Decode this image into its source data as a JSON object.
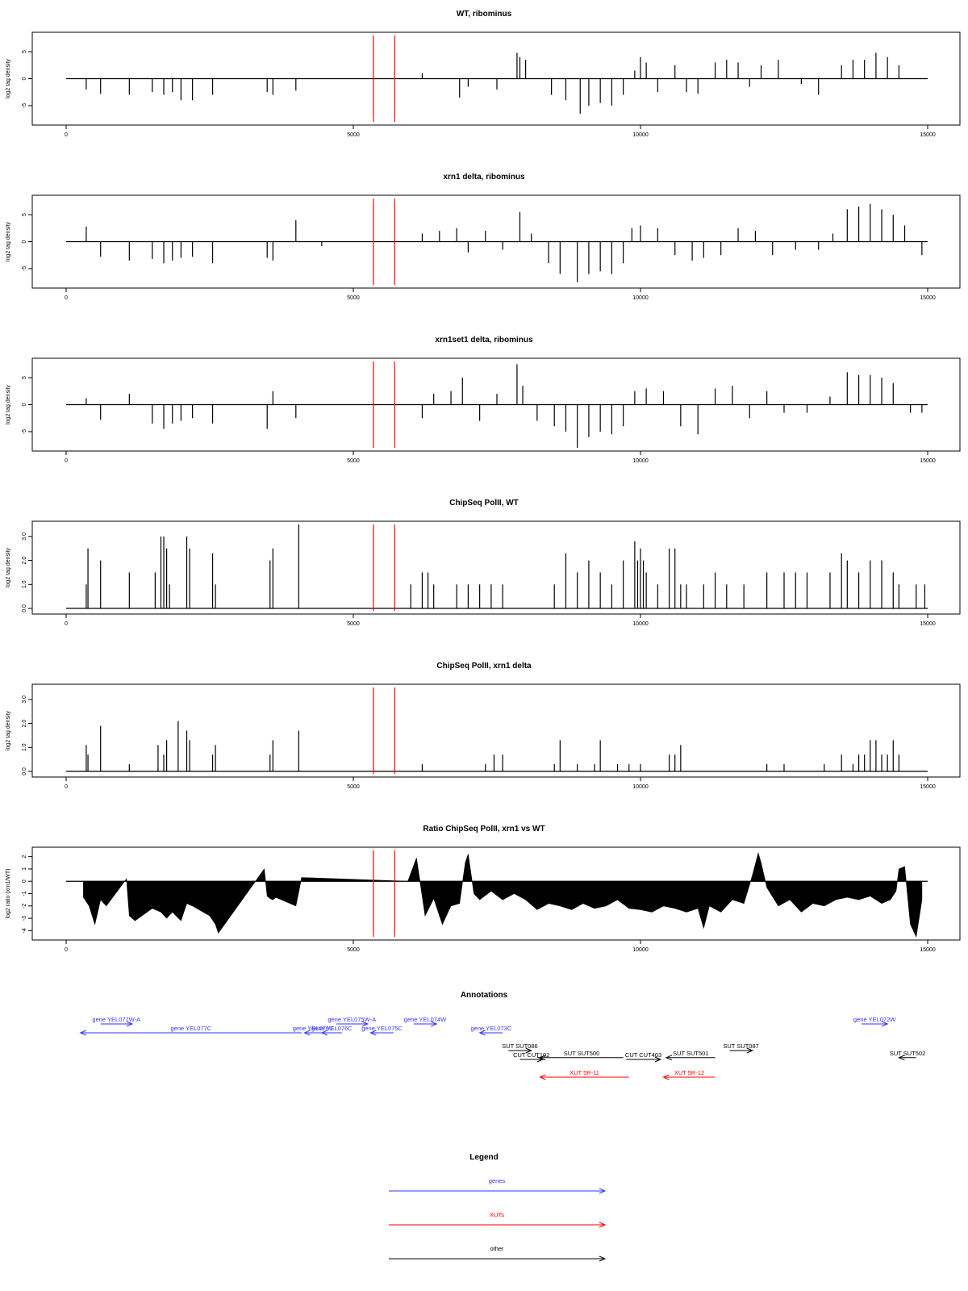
{
  "colors": {
    "genes": "#3333ff",
    "xuts": "#ff0000",
    "other": "#000000",
    "marker": "#ff0000"
  },
  "chart_data": [
    {
      "type": "bar",
      "title": "WT, ribominus",
      "ylabel": "log2 tag density",
      "xlim": [
        0,
        15000
      ],
      "ylim": [
        -8,
        8
      ],
      "xticks": [
        0,
        5000,
        10000,
        15000
      ],
      "xtick_labels": [
        "0",
        "5000",
        "10000",
        "15000"
      ],
      "yticks": [
        -5,
        0,
        5
      ],
      "ytick_labels": [
        "-5",
        "0",
        "5"
      ],
      "markers": [
        5350,
        5720
      ],
      "x": [
        350,
        600,
        1100,
        1500,
        1700,
        1850,
        2000,
        2200,
        2550,
        3500,
        3600,
        4000,
        6200,
        6850,
        7000,
        7500,
        7850,
        7900,
        8000,
        8450,
        8700,
        8950,
        9100,
        9300,
        9500,
        9700,
        9900,
        10000,
        10100,
        10300,
        10600,
        10800,
        11000,
        11300,
        11500,
        11700,
        11900,
        12100,
        12400,
        12800,
        13100,
        13500,
        13700,
        13900,
        14100,
        14300,
        14500
      ],
      "values": [
        -2,
        -2.8,
        -3,
        -2.5,
        -3,
        -2.5,
        -4,
        -4,
        -3,
        -2.5,
        -3,
        -2.2,
        1,
        -3.5,
        -1.5,
        -2,
        4.8,
        4,
        3.5,
        -3,
        -4,
        -6.5,
        -5,
        -4.5,
        -5,
        -3,
        1.5,
        4,
        3,
        -2.5,
        2.5,
        -2.5,
        -2.8,
        3,
        3.5,
        3,
        -1.5,
        2.5,
        3.5,
        -1,
        -3,
        2.5,
        3.5,
        3.5,
        4.8,
        4,
        2.5
      ]
    },
    {
      "type": "bar",
      "title": "xrn1 delta, ribominus",
      "ylabel": "log2 tag density",
      "xlim": [
        0,
        15000
      ],
      "ylim": [
        -8,
        8
      ],
      "xticks": [
        0,
        5000,
        10000,
        15000
      ],
      "xtick_labels": [
        "0",
        "5000",
        "10000",
        "15000"
      ],
      "yticks": [
        -5,
        0,
        5
      ],
      "ytick_labels": [
        "-5",
        "0",
        "5"
      ],
      "markers": [
        5350,
        5720
      ],
      "x": [
        350,
        600,
        1100,
        1500,
        1700,
        1850,
        2000,
        2200,
        2550,
        3500,
        3600,
        4000,
        4450,
        6200,
        6500,
        6800,
        7000,
        7300,
        7600,
        7900,
        8100,
        8400,
        8600,
        8900,
        9100,
        9300,
        9500,
        9700,
        9850,
        10000,
        10300,
        10600,
        10900,
        11100,
        11400,
        11700,
        12000,
        12300,
        12700,
        13100,
        13350,
        13600,
        13800,
        14000,
        14200,
        14400,
        14600,
        14900
      ],
      "values": [
        2.8,
        -2.8,
        -3.5,
        -3.2,
        -4,
        -3.5,
        -3,
        -2.8,
        -4,
        -3,
        -3.5,
        4,
        -0.8,
        1.5,
        2,
        2.5,
        -2,
        2,
        -1.5,
        5.5,
        1.5,
        -4,
        -6,
        -7.5,
        -6,
        -5.5,
        -6,
        -4,
        2.5,
        3,
        2.5,
        -2.5,
        -3.5,
        -3,
        -2.5,
        2.5,
        2,
        -2.5,
        -1.5,
        -1.5,
        1.5,
        6,
        6.5,
        7,
        6,
        5,
        3,
        -2.5
      ]
    },
    {
      "type": "bar",
      "title": "xrn1set1 delta, ribominus",
      "ylabel": "log2 tag density",
      "xlim": [
        0,
        15000
      ],
      "ylim": [
        -8,
        8
      ],
      "xticks": [
        0,
        5000,
        10000,
        15000
      ],
      "xtick_labels": [
        "0",
        "5000",
        "10000",
        "15000"
      ],
      "yticks": [
        -5,
        0,
        5
      ],
      "ytick_labels": [
        "-5",
        "0",
        "5"
      ],
      "markers": [
        5350,
        5720
      ],
      "x": [
        350,
        600,
        1100,
        1500,
        1700,
        1850,
        2000,
        2200,
        2550,
        3500,
        3600,
        4000,
        6200,
        6400,
        6700,
        6900,
        7200,
        7500,
        7850,
        7950,
        8200,
        8500,
        8700,
        8900,
        9100,
        9300,
        9500,
        9700,
        9900,
        10100,
        10400,
        10700,
        11000,
        11300,
        11600,
        11900,
        12200,
        12500,
        12900,
        13300,
        13600,
        13800,
        14000,
        14200,
        14400,
        14700,
        14900
      ],
      "values": [
        1.2,
        -2.8,
        2,
        -3.5,
        -4.5,
        -3.5,
        -3,
        -2.5,
        -3.5,
        -4.5,
        2.5,
        -2.5,
        -2.5,
        2,
        2.5,
        5,
        -3,
        2,
        7.5,
        3.5,
        -3,
        -4,
        -5,
        -8,
        -6,
        -5,
        -5.5,
        -4,
        2.5,
        3,
        2.5,
        -4,
        -5.5,
        3,
        3.5,
        -2.5,
        2.5,
        -1.5,
        -1.5,
        1.5,
        6,
        5.5,
        5.5,
        5,
        4,
        -1.5,
        -1.5
      ]
    },
    {
      "type": "bar",
      "title": "ChipSeq PolII, WT",
      "ylabel": "log2 tag density",
      "xlim": [
        0,
        15000
      ],
      "ylim": [
        -0.1,
        3.5
      ],
      "xticks": [
        0,
        5000,
        10000,
        15000
      ],
      "xtick_labels": [
        "0",
        "5000",
        "10000",
        "15000"
      ],
      "yticks": [
        0,
        1,
        2,
        3
      ],
      "ytick_labels": [
        "0.0",
        "1.0",
        "2.0",
        "3.0"
      ],
      "markers": [
        5350,
        5720
      ],
      "x": [
        350,
        380,
        600,
        1100,
        1550,
        1650,
        1700,
        1750,
        1800,
        2100,
        2150,
        2550,
        2600,
        3550,
        3600,
        4050,
        6000,
        6200,
        6300,
        6400,
        6800,
        7000,
        7200,
        7400,
        7600,
        8500,
        8700,
        8900,
        9100,
        9300,
        9500,
        9700,
        9900,
        9950,
        10000,
        10050,
        10100,
        10300,
        10500,
        10600,
        10700,
        10800,
        11100,
        11300,
        11500,
        11800,
        12200,
        12500,
        12700,
        12900,
        13300,
        13500,
        13600,
        13800,
        14000,
        14200,
        14400,
        14500,
        14800,
        14950
      ],
      "values": [
        1,
        2.5,
        2,
        1.5,
        1.5,
        3,
        3,
        2.5,
        1,
        3,
        2.5,
        2.3,
        1,
        2,
        2.5,
        3.5,
        1,
        1.5,
        1.5,
        1,
        1,
        1,
        1,
        1,
        1,
        1,
        2.3,
        1.5,
        2,
        1.5,
        1,
        2,
        2.8,
        2,
        2.5,
        2,
        1.5,
        1,
        2.5,
        2.5,
        1,
        1,
        1,
        1.5,
        1,
        1,
        1.5,
        1.5,
        1.5,
        1.5,
        1.5,
        2.3,
        2,
        1.5,
        2,
        2,
        1.5,
        1,
        1,
        1
      ]
    },
    {
      "type": "bar",
      "title": "ChipSeq PolII, xrn1 delta",
      "ylabel": "log2 tag density",
      "xlim": [
        0,
        15000
      ],
      "ylim": [
        -0.1,
        3.5
      ],
      "xticks": [
        0,
        5000,
        10000,
        15000
      ],
      "xtick_labels": [
        "0",
        "5000",
        "10000",
        "15000"
      ],
      "yticks": [
        0,
        1,
        2,
        3
      ],
      "ytick_labels": [
        "0.0",
        "1.0",
        "2.0",
        "3.0"
      ],
      "markers": [
        5350,
        5720
      ],
      "x": [
        350,
        380,
        600,
        1100,
        1600,
        1700,
        1750,
        1950,
        2100,
        2150,
        2550,
        2600,
        3550,
        3600,
        4050,
        6200,
        7300,
        7450,
        7600,
        8500,
        8600,
        8900,
        9200,
        9300,
        9600,
        9800,
        10000,
        10500,
        10600,
        10700,
        12200,
        12500,
        13200,
        13500,
        13700,
        13800,
        13900,
        14000,
        14100,
        14200,
        14300,
        14400,
        14500
      ],
      "values": [
        1.1,
        0.7,
        1.9,
        0.3,
        1.1,
        0.7,
        1.3,
        2.1,
        1.7,
        1.3,
        0.7,
        1.1,
        0.7,
        1.3,
        1.7,
        0.3,
        0.3,
        0.7,
        0.7,
        0.3,
        1.3,
        0.3,
        0.3,
        1.3,
        0.3,
        0.3,
        0.3,
        0.7,
        0.7,
        1.1,
        0.3,
        0.3,
        0.3,
        0.7,
        0.3,
        0.7,
        0.7,
        1.3,
        1.3,
        0.7,
        0.7,
        1.3,
        0.7
      ]
    },
    {
      "type": "area",
      "title": "Ratio ChipSeq PolII, xrn1 vs WT",
      "ylabel": "log2 ratio (xrn1/WT)",
      "xlim": [
        0,
        15000
      ],
      "ylim": [
        -4.5,
        2.5
      ],
      "xticks": [
        0,
        5000,
        10000,
        15000
      ],
      "xtick_labels": [
        "0",
        "5000",
        "10000",
        "15000"
      ],
      "yticks": [
        -4,
        -3,
        -2,
        -1,
        0,
        1,
        2
      ],
      "ytick_labels": [
        "-4",
        "-3",
        "-2",
        "-1",
        "0",
        "1",
        "2"
      ],
      "markers": [
        5350,
        5720
      ],
      "x": [
        300,
        400,
        500,
        600,
        700,
        1050,
        1100,
        1200,
        1500,
        1650,
        1750,
        1850,
        2000,
        2100,
        2200,
        2500,
        2600,
        2650,
        3450,
        3500,
        3550,
        3600,
        3650,
        4000,
        4100,
        5950,
        6100,
        6250,
        6400,
        6550,
        6700,
        6850,
        6950,
        7000,
        7100,
        7200,
        7400,
        7600,
        7800,
        8000,
        8200,
        8400,
        8600,
        8800,
        9000,
        9200,
        9400,
        9600,
        9800,
        10000,
        10200,
        10400,
        10600,
        10800,
        11000,
        11100,
        11200,
        11400,
        11600,
        11800,
        11950,
        12050,
        12100,
        12200,
        12400,
        12600,
        12800,
        13000,
        13200,
        13400,
        13600,
        13800,
        14000,
        14200,
        14350,
        14450,
        14500,
        14600,
        14700,
        14800,
        14900
      ],
      "values": [
        -1.3,
        -2,
        -3.5,
        -1.5,
        -2,
        0.2,
        -2.8,
        -3.2,
        -2.2,
        -2.5,
        -3,
        -2.5,
        -3.2,
        -1.8,
        -2,
        -2.8,
        -3.5,
        -4.2,
        1,
        -1.2,
        -1.4,
        -1.5,
        -1.3,
        -2,
        0.3,
        0,
        1.9,
        -2.8,
        -1.4,
        -3.5,
        -2,
        -1.8,
        1.5,
        2.2,
        -1,
        -1.5,
        -0.8,
        -1.5,
        -1,
        -1.5,
        -2.3,
        -1.8,
        -2,
        -2.3,
        -1.8,
        -2.2,
        -2,
        -1.5,
        -2.2,
        -2.3,
        -2.5,
        -2,
        -2.2,
        -2.5,
        -2.2,
        -3.8,
        -2,
        -2.5,
        -1.5,
        -1.8,
        0.5,
        2.3,
        1.5,
        -0.5,
        -2,
        -1.5,
        -2.5,
        -1.8,
        -2,
        -1.5,
        -1.3,
        -1.5,
        -1.2,
        -1.8,
        -1.5,
        -0.8,
        1,
        1.2,
        -3.5,
        -4.5,
        -1.5
      ]
    }
  ],
  "annotations": {
    "title": "Annotations",
    "xlim": [
      0,
      15000
    ],
    "items": [
      {
        "label": "gene YEL077W-A",
        "kind": "genes",
        "start": 600,
        "end": 1150,
        "dir": "right",
        "row": 1
      },
      {
        "label": "gene YEL077C",
        "kind": "genes",
        "start": 250,
        "end": 4100,
        "dir": "left",
        "row": 2
      },
      {
        "label": "gene YEL076C",
        "kind": "genes",
        "start": 4150,
        "end": 4450,
        "dir": "left",
        "row": 2
      },
      {
        "label": "gene YEL076C",
        "kind": "genes",
        "start": 4450,
        "end": 4800,
        "dir": "left",
        "row": 2
      },
      {
        "label": "gene YEL075W-A",
        "kind": "genes",
        "start": 4700,
        "end": 5250,
        "dir": "right",
        "row": 1
      },
      {
        "label": "gene YEL075C",
        "kind": "genes",
        "start": 5300,
        "end": 5700,
        "dir": "left",
        "row": 2
      },
      {
        "label": "gene YEL074W",
        "kind": "genes",
        "start": 6050,
        "end": 6450,
        "dir": "right",
        "row": 1
      },
      {
        "label": "gene YEL073C",
        "kind": "genes",
        "start": 7200,
        "end": 7600,
        "dir": "left",
        "row": 2
      },
      {
        "label": "gene YEL072W",
        "kind": "genes",
        "start": 13850,
        "end": 14300,
        "dir": "right",
        "row": 1
      },
      {
        "label": "SUT SUT086",
        "kind": "other",
        "start": 7700,
        "end": 8100,
        "dir": "right",
        "row": 4
      },
      {
        "label": "CUT CUT102",
        "kind": "other",
        "start": 7900,
        "end": 8300,
        "dir": "right",
        "row": 5
      },
      {
        "label": "SUT SUT500",
        "kind": "other",
        "start": 8250,
        "end": 9700,
        "dir": "left",
        "row": 4.8
      },
      {
        "label": "CUT CUT403",
        "kind": "other",
        "start": 9750,
        "end": 10350,
        "dir": "right",
        "row": 5
      },
      {
        "label": "SUT SUT501",
        "kind": "other",
        "start": 10450,
        "end": 11300,
        "dir": "left",
        "row": 4.8
      },
      {
        "label": "SUT SUT087",
        "kind": "other",
        "start": 11550,
        "end": 11950,
        "dir": "right",
        "row": 4
      },
      {
        "label": "SUT SUT502",
        "kind": "other",
        "start": 14500,
        "end": 14800,
        "dir": "left",
        "row": 4.8
      },
      {
        "label": "XUT 5R-11",
        "kind": "xuts",
        "start": 8250,
        "end": 9800,
        "dir": "left",
        "row": 7
      },
      {
        "label": "XUT 5R-12",
        "kind": "xuts",
        "start": 10400,
        "end": 11300,
        "dir": "left",
        "row": 7
      }
    ]
  },
  "legend": {
    "title": "Legend",
    "items": [
      {
        "label": "genes",
        "kind": "genes"
      },
      {
        "label": "XUTs",
        "kind": "xuts"
      },
      {
        "label": "other",
        "kind": "other"
      }
    ]
  }
}
